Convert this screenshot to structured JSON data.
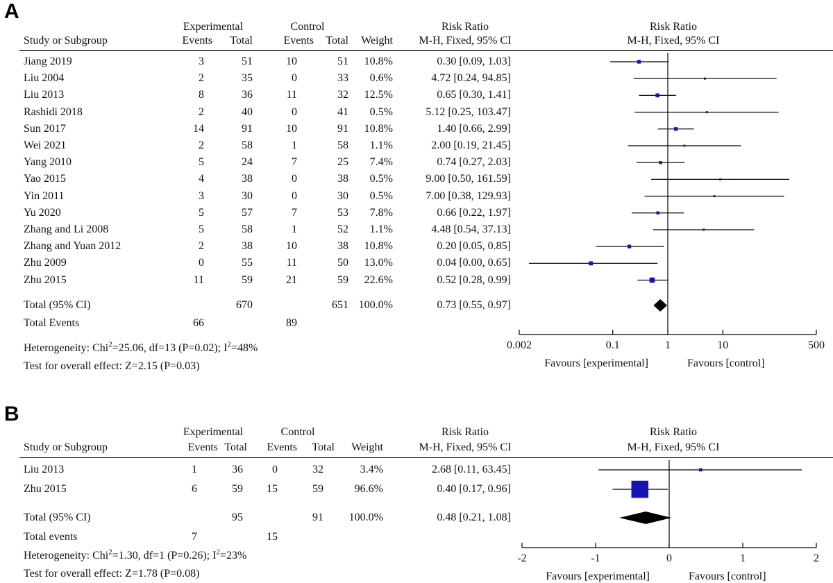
{
  "chart_data": [
    {
      "type": "forest",
      "panel_label": "A",
      "headers": {
        "study": "Study or Subgroup",
        "experimental": "Experimental",
        "control": "Control",
        "events": "Events",
        "total": "Total",
        "weight": "Weight",
        "rr_title": "Risk Ratio",
        "rr_method": "M-H, Fixed, 95% CI"
      },
      "studies": [
        {
          "name": "Jiang 2019",
          "exp_events": "3",
          "exp_total": "51",
          "ctl_events": "10",
          "ctl_total": "51",
          "weight": "10.8%",
          "ci_text": "0.30 [0.09, 1.03]",
          "rr": 0.3,
          "lo": 0.09,
          "hi": 1.03,
          "w": 10.8
        },
        {
          "name": "Liu 2004",
          "exp_events": "2",
          "exp_total": "35",
          "ctl_events": "0",
          "ctl_total": "33",
          "weight": "0.6%",
          "ci_text": "4.72 [0.24, 94.85]",
          "rr": 4.72,
          "lo": 0.24,
          "hi": 94.85,
          "w": 0.6
        },
        {
          "name": "Liu 2013",
          "exp_events": "8",
          "exp_total": "36",
          "ctl_events": "11",
          "ctl_total": "32",
          "weight": "12.5%",
          "ci_text": "0.65 [0.30, 1.41]",
          "rr": 0.65,
          "lo": 0.3,
          "hi": 1.41,
          "w": 12.5
        },
        {
          "name": "Rashidi 2018",
          "exp_events": "2",
          "exp_total": "40",
          "ctl_events": "0",
          "ctl_total": "41",
          "weight": "0.5%",
          "ci_text": "5.12 [0.25, 103.47]",
          "rr": 5.12,
          "lo": 0.25,
          "hi": 103.47,
          "w": 0.5
        },
        {
          "name": "Sun 2017",
          "exp_events": "14",
          "exp_total": "91",
          "ctl_events": "10",
          "ctl_total": "91",
          "weight": "10.8%",
          "ci_text": "1.40 [0.66, 2.99]",
          "rr": 1.4,
          "lo": 0.66,
          "hi": 2.99,
          "w": 10.8
        },
        {
          "name": "Wei 2021",
          "exp_events": "2",
          "exp_total": "58",
          "ctl_events": "1",
          "ctl_total": "58",
          "weight": "1.1%",
          "ci_text": "2.00 [0.19, 21.45]",
          "rr": 2.0,
          "lo": 0.19,
          "hi": 21.45,
          "w": 1.1
        },
        {
          "name": "Yang 2010",
          "exp_events": "5",
          "exp_total": "24",
          "ctl_events": "7",
          "ctl_total": "25",
          "weight": "7.4%",
          "ci_text": "0.74 [0.27, 2.03]",
          "rr": 0.74,
          "lo": 0.27,
          "hi": 2.03,
          "w": 7.4
        },
        {
          "name": "Yao 2015",
          "exp_events": "4",
          "exp_total": "38",
          "ctl_events": "0",
          "ctl_total": "38",
          "weight": "0.5%",
          "ci_text": "9.00 [0.50, 161.59]",
          "rr": 9.0,
          "lo": 0.5,
          "hi": 161.59,
          "w": 0.5
        },
        {
          "name": "Yin 2011",
          "exp_events": "3",
          "exp_total": "30",
          "ctl_events": "0",
          "ctl_total": "30",
          "weight": "0.5%",
          "ci_text": "7.00 [0.38, 129.93]",
          "rr": 7.0,
          "lo": 0.38,
          "hi": 129.93,
          "w": 0.5
        },
        {
          "name": "Yu 2020",
          "exp_events": "5",
          "exp_total": "57",
          "ctl_events": "7",
          "ctl_total": "53",
          "weight": "7.8%",
          "ci_text": "0.66 [0.22, 1.97]",
          "rr": 0.66,
          "lo": 0.22,
          "hi": 1.97,
          "w": 7.8
        },
        {
          "name": "Zhang and Li 2008",
          "exp_events": "5",
          "exp_total": "58",
          "ctl_events": "1",
          "ctl_total": "52",
          "weight": "1.1%",
          "ci_text": "4.48 [0.54, 37.13]",
          "rr": 4.48,
          "lo": 0.54,
          "hi": 37.13,
          "w": 1.1
        },
        {
          "name": "Zhang and Yuan 2012",
          "exp_events": "2",
          "exp_total": "38",
          "ctl_events": "10",
          "ctl_total": "38",
          "weight": "10.8%",
          "ci_text": "0.20 [0.05, 0.85]",
          "rr": 0.2,
          "lo": 0.05,
          "hi": 0.85,
          "w": 10.8
        },
        {
          "name": "Zhu 2009",
          "exp_events": "0",
          "exp_total": "55",
          "ctl_events": "11",
          "ctl_total": "50",
          "weight": "13.0%",
          "ci_text": "0.04 [0.00, 0.65]",
          "rr": 0.04,
          "lo": 0.003,
          "hi": 0.65,
          "w": 13.0
        },
        {
          "name": "Zhu 2015",
          "exp_events": "11",
          "exp_total": "59",
          "ctl_events": "21",
          "ctl_total": "59",
          "weight": "22.6%",
          "ci_text": "0.52 [0.28, 0.99]",
          "rr": 0.52,
          "lo": 0.28,
          "hi": 0.99,
          "w": 22.6
        }
      ],
      "total": {
        "label": "Total (95% CI)",
        "exp_total": "670",
        "ctl_total": "651",
        "weight": "100.0%",
        "ci_text": "0.73 [0.55, 0.97]",
        "rr": 0.73,
        "lo": 0.55,
        "hi": 0.97
      },
      "events": {
        "label": "Total Events",
        "exp": "66",
        "ctl": "89"
      },
      "heterogeneity": {
        "prefix": "Heterogeneity: Chi",
        "sup1": "2",
        "middle": "=25.06, df=13 (P=0.02); I",
        "sup2": "2",
        "suffix": "=48%"
      },
      "overall_effect": "Test for overall effect: Z=2.15 (P=0.03)",
      "axis": {
        "scale": "log",
        "range": [
          0.002,
          500
        ],
        "ticks": [
          0.002,
          0.1,
          1,
          10,
          500
        ],
        "tick_labels": [
          "0.002",
          "0.1",
          "1",
          "10",
          "500"
        ]
      },
      "favours_left": "Favours [experimental]",
      "favours_right": "Favours [control]",
      "colors": {
        "marker": "#1414b4",
        "line": "#000000"
      }
    },
    {
      "type": "forest",
      "panel_label": "B",
      "headers": {
        "study": "Study or Subgroup",
        "experimental": "Experimental",
        "control": "Control",
        "events": "Events",
        "total": "Total",
        "weight": "Weight",
        "rr_title": "Risk Ratio",
        "rr_method": "M-H, Fixed, 95% CI"
      },
      "studies": [
        {
          "name": "Liu 2013",
          "exp_events": "1",
          "exp_total": "36",
          "ctl_events": "0",
          "ctl_total": "32",
          "weight": "3.4%",
          "ci_text": "2.68 [0.11, 63.45]",
          "rr": 0.428,
          "lo": -0.959,
          "hi": 1.802,
          "w": 3.4
        },
        {
          "name": "Zhu 2015",
          "exp_events": "6",
          "exp_total": "59",
          "ctl_events": "15",
          "ctl_total": "59",
          "weight": "96.6%",
          "ci_text": "0.40 [0.17, 0.96]",
          "rr": -0.398,
          "lo": -0.77,
          "hi": -0.018,
          "w": 96.6
        }
      ],
      "total": {
        "label": "Total (95% CI)",
        "exp_total": "95",
        "ctl_total": "91",
        "weight": "100.0%",
        "ci_text": "0.48 [0.21, 1.08]",
        "rr": -0.319,
        "lo": -0.678,
        "hi": 0.033
      },
      "events": {
        "label": "Total events",
        "exp": "7",
        "ctl": "15"
      },
      "heterogeneity": {
        "prefix": "Heterogeneity: Chi",
        "sup1": "2",
        "middle": "=1.30, df=1 (P=0.26); I",
        "sup2": "2",
        "suffix": "=23%"
      },
      "overall_effect": "Test for overall effect: Z=1.78 (P=0.08)",
      "axis": {
        "scale": "linear",
        "range": [
          -2,
          2
        ],
        "ticks": [
          -2,
          -1,
          0,
          1,
          2
        ],
        "tick_labels": [
          "-2",
          "-1",
          "0",
          "1",
          "2"
        ]
      },
      "favours_left": "Favours [experimental]",
      "favours_right": "Favours [control]",
      "colors": {
        "marker": "#1414b4",
        "line": "#000000"
      }
    }
  ]
}
